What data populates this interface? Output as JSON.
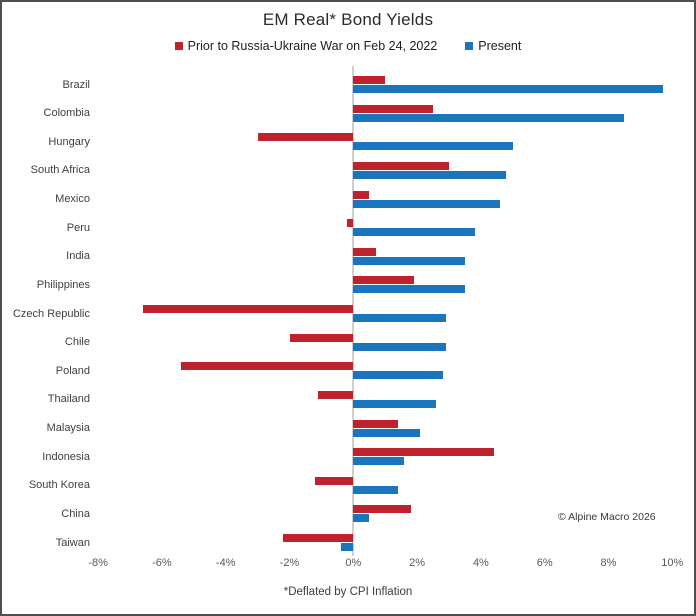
{
  "title": "EM Real* Bond Yields",
  "legend": [
    {
      "label": "Prior to Russia-Ukraine War on Feb 24, 2022",
      "color": "#be222d"
    },
    {
      "label": "Present",
      "color": "#1a75bc"
    }
  ],
  "footnote": "*Deflated by CPI Inflation",
  "copyright": "© Alpine Macro 2026",
  "colors": {
    "prior_bar": "#be222d",
    "present_bar": "#1a75bc",
    "zero_axis_line": "#cfcfcf",
    "tick_text": "#595959",
    "category_text": "#3f3f3f"
  },
  "chart_data": {
    "type": "bar",
    "orientation": "horizontal",
    "title": "EM Real* Bond Yields",
    "unit": "%",
    "grid": false,
    "legend_position": "top",
    "xlim": [
      -8.75,
      10.75
    ],
    "x_ticks": [
      {
        "value": -8,
        "label": "-8%"
      },
      {
        "value": -6,
        "label": "-6%"
      },
      {
        "value": -4,
        "label": "-4%"
      },
      {
        "value": -2,
        "label": "-2%"
      },
      {
        "value": 0,
        "label": "0%"
      },
      {
        "value": 2,
        "label": "2%"
      },
      {
        "value": 4,
        "label": "4%"
      },
      {
        "value": 6,
        "label": "6%"
      },
      {
        "value": 8,
        "label": "8%"
      },
      {
        "value": 10,
        "label": "10%"
      }
    ],
    "categories": [
      "Brazil",
      "Colombia",
      "Hungary",
      "South Africa",
      "Mexico",
      "Peru",
      "India",
      "Philippines",
      "Czech Republic",
      "Chile",
      "Poland",
      "Thailand",
      "Malaysia",
      "Indonesia",
      "South Korea",
      "China",
      "Taiwan"
    ],
    "series": [
      {
        "name": "Prior to Russia-Ukraine War on Feb 24, 2022",
        "color": "#be222d",
        "values": [
          1.0,
          2.5,
          -3.0,
          3.0,
          0.5,
          -0.2,
          0.7,
          1.9,
          -6.6,
          -2.0,
          -5.4,
          -1.1,
          1.4,
          4.4,
          -1.2,
          1.8,
          -2.2
        ]
      },
      {
        "name": "Present",
        "color": "#1a75bc",
        "values": [
          9.7,
          8.5,
          5.0,
          4.8,
          4.6,
          3.8,
          3.5,
          3.5,
          2.9,
          2.9,
          2.8,
          2.6,
          2.1,
          1.6,
          1.4,
          0.5,
          -0.4
        ]
      }
    ]
  }
}
